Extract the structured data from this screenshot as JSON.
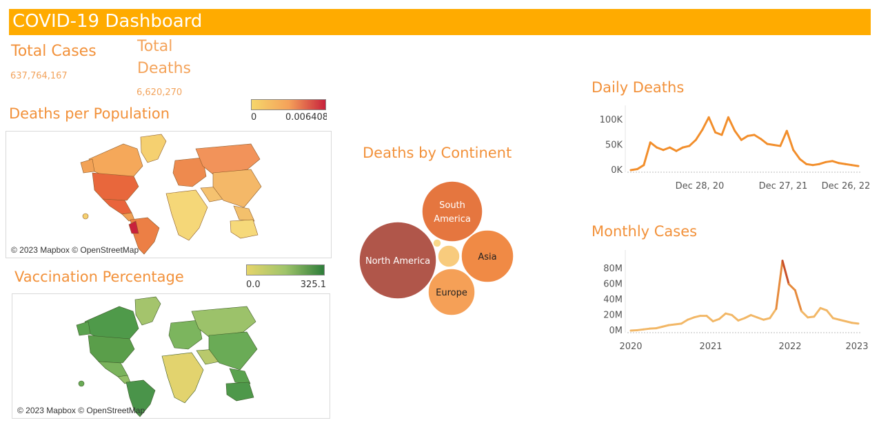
{
  "header": {
    "title": "COVID-19 Dashboard",
    "color": "#ffab00"
  },
  "kpis": {
    "total_cases_label": "Total Cases",
    "total_cases_value": "637,764,167",
    "total_deaths_label_1": "Total",
    "total_deaths_label_2": "Deaths",
    "total_deaths_value": "6,620,270"
  },
  "deaths_map": {
    "title": "Deaths per Population",
    "legend_min": "0",
    "legend_max": "0.006408",
    "attribution": "© 2023 Mapbox © OpenStreetMap",
    "colors": [
      "#f5d66b",
      "#f5a25a",
      "#c8223c"
    ]
  },
  "vacc_map": {
    "title": "Vaccination Percentage",
    "legend_min": "0.0",
    "legend_max": "325.1",
    "attribution": "© 2023 Mapbox © OpenStreetMap",
    "colors": [
      "#e5d46a",
      "#9fc46a",
      "#2e7d3a"
    ]
  },
  "continents": {
    "title": "Deaths by Continent"
  },
  "chart_data": [
    {
      "type": "line",
      "title": "Daily Deaths",
      "x": [
        "2020-01",
        "2020-02",
        "2020-03",
        "2020-04",
        "2020-05",
        "2020-06",
        "2020-07",
        "2020-08",
        "2020-09",
        "2020-10",
        "2020-11",
        "2020-12",
        "2021-01",
        "2021-02",
        "2021-03",
        "2021-04",
        "2021-05",
        "2021-06",
        "2021-07",
        "2021-08",
        "2021-09",
        "2021-10",
        "2021-11",
        "2021-12",
        "2022-01",
        "2022-02",
        "2022-03",
        "2022-04",
        "2022-05",
        "2022-06",
        "2022-07",
        "2022-08",
        "2022-09",
        "2022-10",
        "2022-11",
        "2022-12"
      ],
      "values": [
        0,
        2,
        10,
        55,
        45,
        40,
        45,
        38,
        45,
        48,
        60,
        80,
        105,
        75,
        70,
        105,
        78,
        60,
        68,
        70,
        62,
        52,
        50,
        48,
        78,
        40,
        22,
        12,
        10,
        12,
        16,
        18,
        14,
        12,
        10,
        8
      ],
      "y_ticks": [
        "0K",
        "50K",
        "100K"
      ],
      "y_tick_values": [
        0,
        50000,
        100000
      ],
      "x_ticks": [
        "Dec 28, 20",
        "Dec 27, 21",
        "Dec 26, 22"
      ],
      "ylim": [
        0,
        115000
      ],
      "unit": 1000,
      "color": "#f28e2b"
    },
    {
      "type": "line",
      "title": "Monthly Cases",
      "x": [
        "2020-01",
        "2020-02",
        "2020-03",
        "2020-04",
        "2020-05",
        "2020-06",
        "2020-07",
        "2020-08",
        "2020-09",
        "2020-10",
        "2020-11",
        "2020-12",
        "2021-01",
        "2021-02",
        "2021-03",
        "2021-04",
        "2021-05",
        "2021-06",
        "2021-07",
        "2021-08",
        "2021-09",
        "2021-10",
        "2021-11",
        "2021-12",
        "2022-01",
        "2022-02",
        "2022-03",
        "2022-04",
        "2022-05",
        "2022-06",
        "2022-07",
        "2022-08",
        "2022-09",
        "2022-10",
        "2022-11",
        "2022-12",
        "2023-01"
      ],
      "values": [
        0,
        0.5,
        1.5,
        2.5,
        3,
        5,
        7,
        8,
        9,
        14,
        17,
        19,
        19,
        12,
        15,
        22,
        20,
        13,
        16,
        20,
        17,
        14,
        16,
        28,
        90,
        60,
        52,
        25,
        17,
        18,
        29,
        26,
        16,
        14,
        12,
        10,
        9
      ],
      "y_ticks": [
        "0M",
        "20M",
        "40M",
        "60M",
        "80M"
      ],
      "y_tick_values": [
        0,
        20000000,
        40000000,
        60000000,
        80000000
      ],
      "x_ticks": [
        "2020",
        "2021",
        "2022",
        "2023"
      ],
      "ylim": [
        0,
        95000000
      ],
      "unit": 1000000,
      "color": "#f2b766"
    },
    {
      "type": "bubble",
      "title": "Deaths by Continent",
      "series": [
        {
          "name": "North America",
          "value": 1590000,
          "color": "#b0564a",
          "label_color": "#ffffff"
        },
        {
          "name": "South America",
          "value": 1350000,
          "color": "#e5763f",
          "label_color": "#ffffff"
        },
        {
          "name": "Asia",
          "value": 1160000,
          "color": "#f08a45",
          "label_color": "#222222"
        },
        {
          "name": "Europe",
          "value": 930000,
          "color": "#f5a057",
          "label_color": "#222222"
        },
        {
          "name": "",
          "value": 220000,
          "color": "#f8cb7d",
          "label_color": "#222222"
        },
        {
          "name": "",
          "value": 30000,
          "color": "#f8d88a",
          "label_color": "#222222"
        }
      ]
    }
  ]
}
